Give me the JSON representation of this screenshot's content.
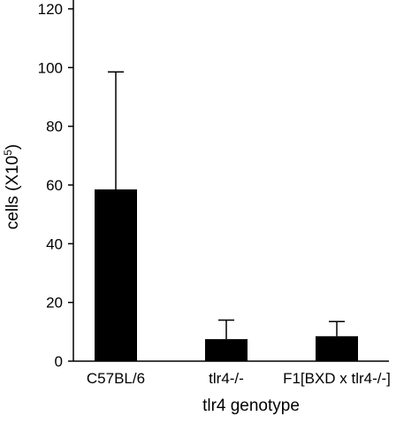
{
  "chart_data": {
    "type": "bar",
    "categories": [
      "C57BL/6",
      "tlr4-/-",
      "F1[BXD x tlr4-/-]"
    ],
    "values": [
      58.5,
      7.5,
      8.5
    ],
    "error_upper": [
      98.5,
      14.0,
      13.5
    ],
    "xlabel": "tlr4 genotype",
    "ylabel": "cells (X10",
    "ylabel_superscript": "5",
    "ylabel_close": ")",
    "ylim": [
      0,
      120
    ],
    "yticks": [
      0,
      20,
      40,
      60,
      80,
      100,
      120
    ],
    "bar_color": "#000000",
    "grid": false
  }
}
